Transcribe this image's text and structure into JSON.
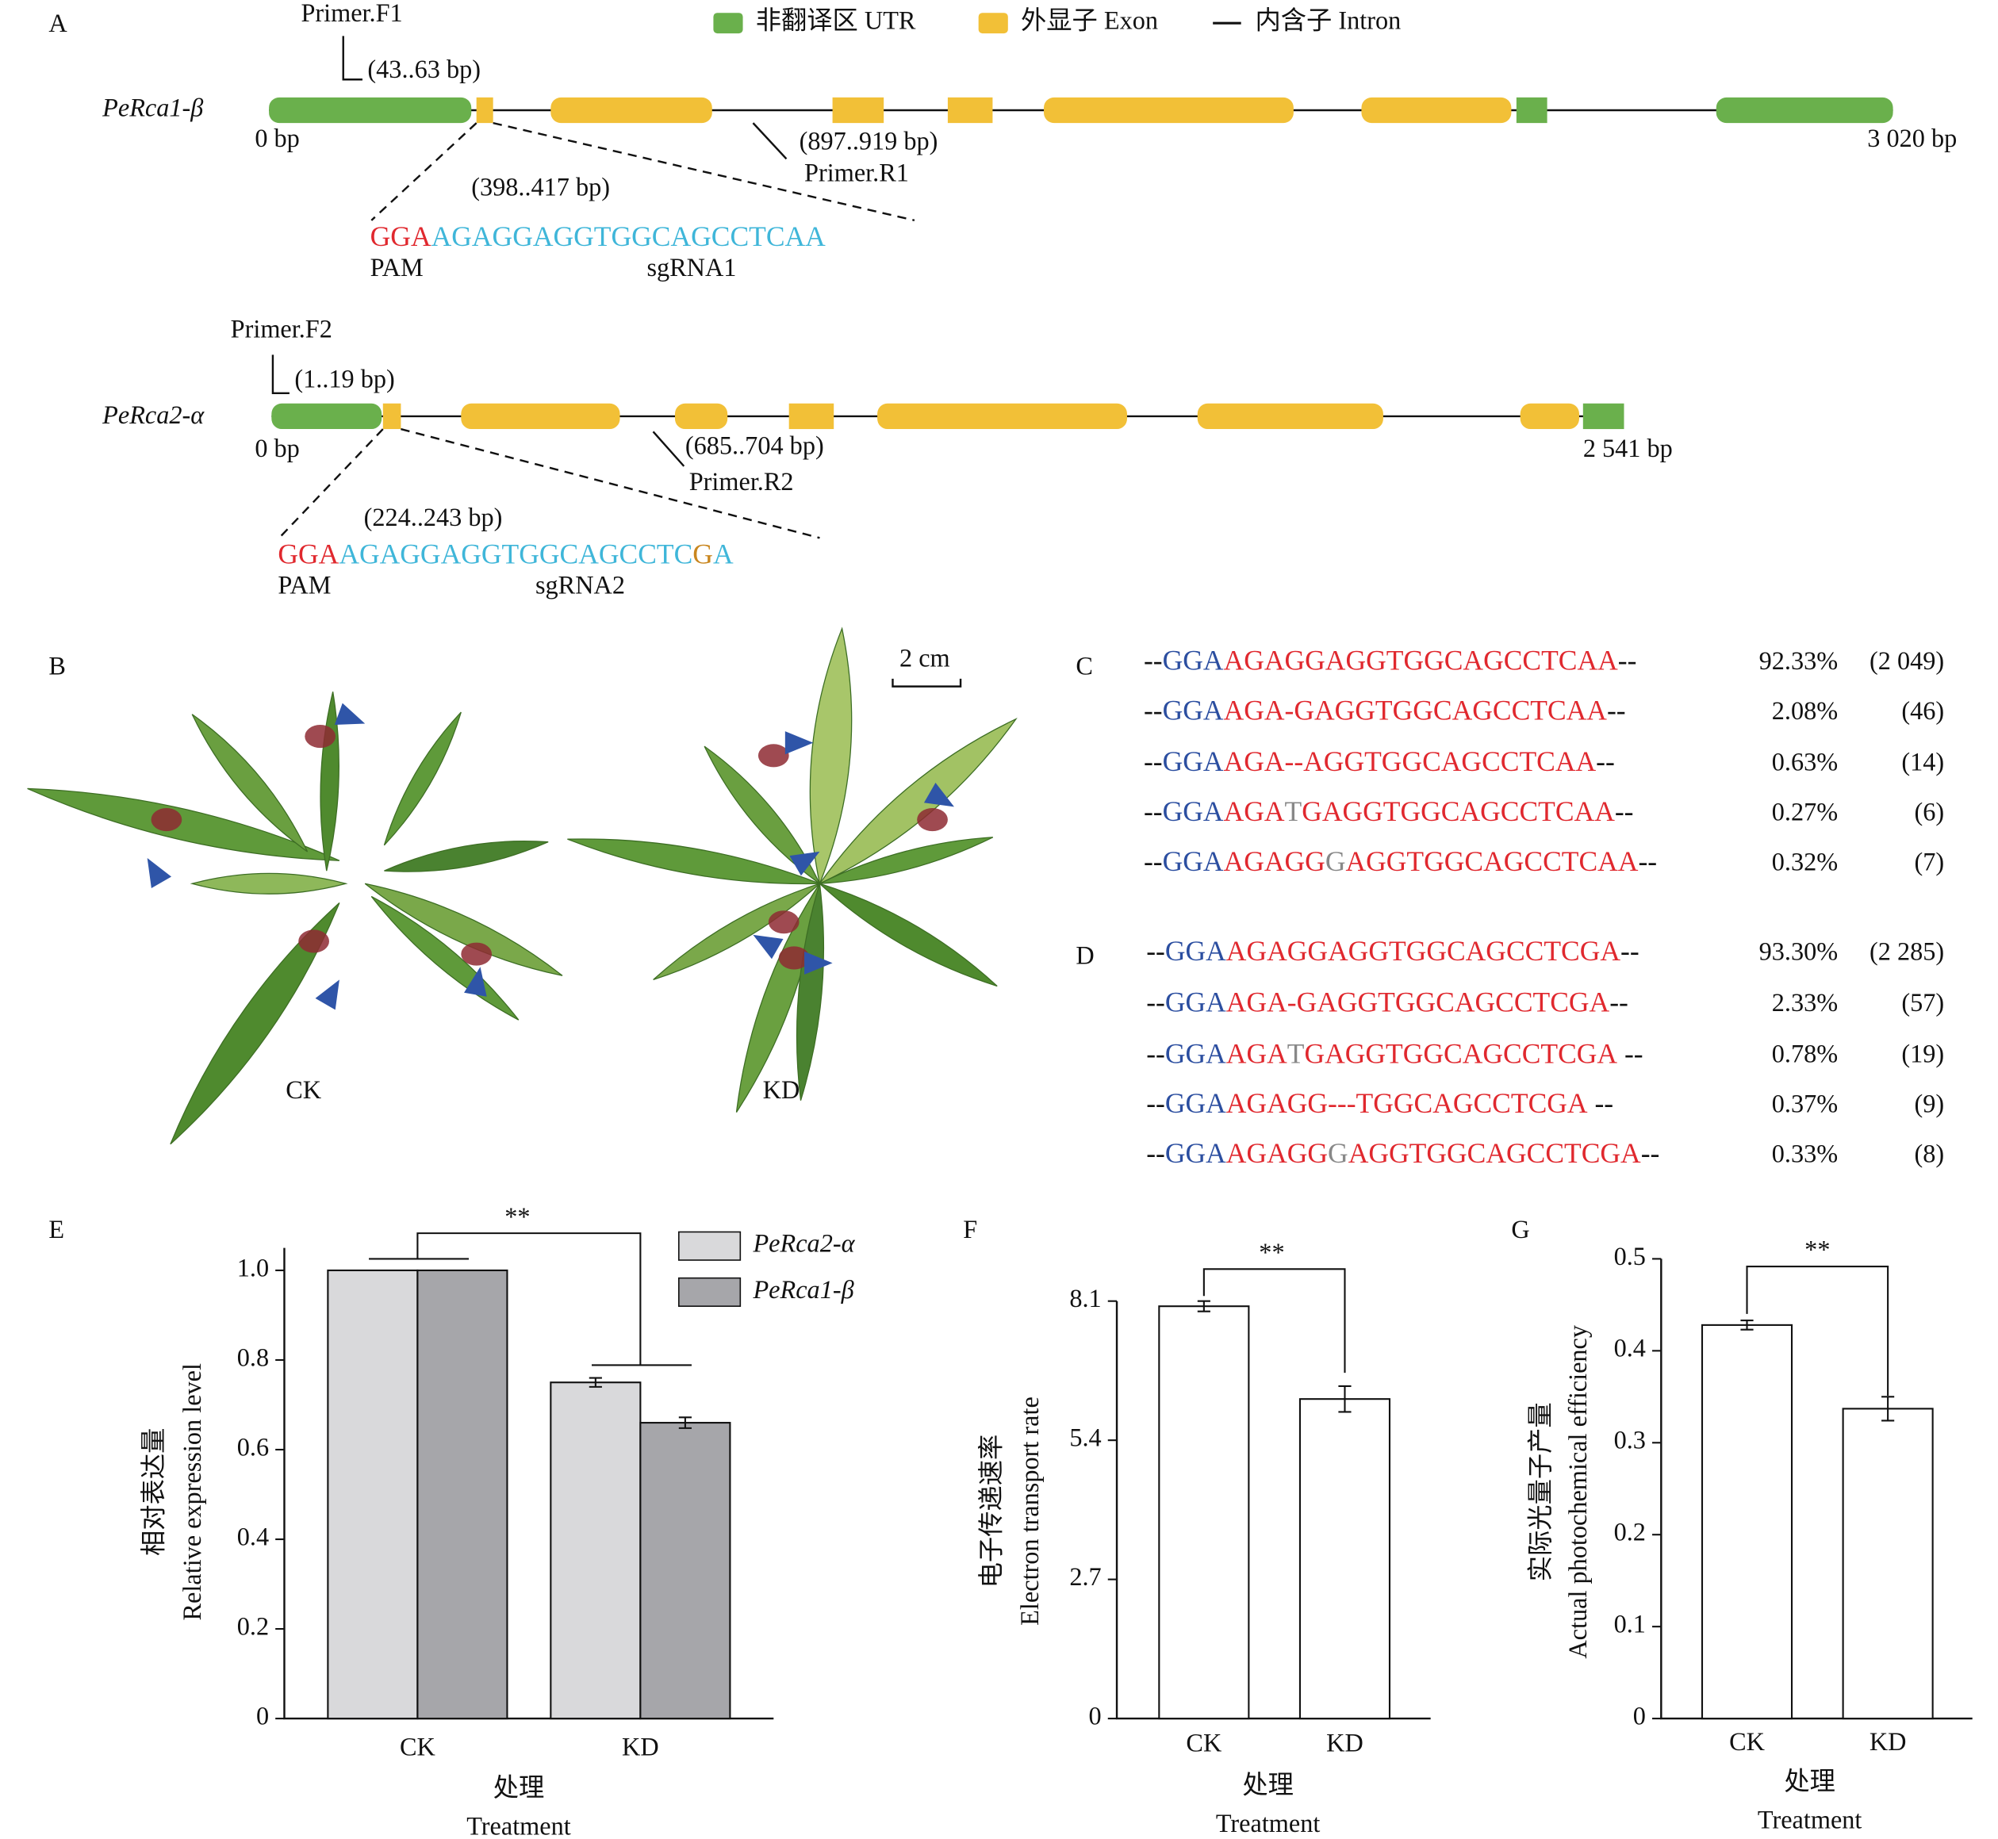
{
  "panel_a": {
    "label": "A",
    "legend": [
      {
        "text": "非翻译区 UTR",
        "color": "#6ab04c"
      },
      {
        "text": "外显子 Exon",
        "color": "#f2c037"
      },
      {
        "text": "内含子 Intron",
        "color": "#111111"
      }
    ],
    "genes": [
      {
        "name": "PeRca1-β",
        "start_label": "0 bp",
        "end_label": "3 020 bp",
        "primer_f": "Primer.F1",
        "primer_f_range": "(43..63 bp)",
        "primer_r_range": "(897..919 bp)",
        "primer_r": "Primer.R1",
        "site_range": "(398..417 bp)",
        "sequence": [
          {
            "text": "GGA",
            "color": "#e0282e"
          },
          {
            "text": "AGAGGAGGTGGCAGCCTCAA",
            "color": "#3fb6d9"
          }
        ],
        "pam_label": "PAM",
        "sgrna_label": "sgRNA1"
      },
      {
        "name": "PeRca2-α",
        "start_label": "0 bp",
        "end_label": "2 541 bp",
        "primer_f": "Primer.F2",
        "primer_f_range": "(1..19 bp)",
        "primer_r_range": "(685..704 bp)",
        "primer_r": "Primer.R2",
        "site_range": "(224..243 bp)",
        "sequence": [
          {
            "text": "GGA",
            "color": "#e0282e"
          },
          {
            "text": "AGAGGAGGTGGCAGCCTC",
            "color": "#3fb6d9"
          },
          {
            "text": "G",
            "color": "#c9861e"
          },
          {
            "text": "A",
            "color": "#3fb6d9"
          }
        ],
        "pam_label": "PAM",
        "sgrna_label": "sgRNA2"
      }
    ]
  },
  "panel_b": {
    "label": "B",
    "scale_bar": "2 cm",
    "left_label": "CK",
    "right_label": "KD"
  },
  "panel_c": {
    "label": "C",
    "rows": [
      {
        "segments": [
          {
            "text": "--",
            "color": "#111111"
          },
          {
            "text": "GGA",
            "color": "#2b4ea0"
          },
          {
            "text": "AGAGGAGGTGGCAGCCTCAA",
            "color": "#e0282e"
          },
          {
            "text": "--",
            "color": "#111111"
          }
        ],
        "percent": "92.33%",
        "count": "(2 049)"
      },
      {
        "segments": [
          {
            "text": "--",
            "color": "#111111"
          },
          {
            "text": "GGA",
            "color": "#2b4ea0"
          },
          {
            "text": "AGA-GAGGTGGCAGCCTCAA",
            "color": "#e0282e"
          },
          {
            "text": "--",
            "color": "#111111"
          }
        ],
        "percent": "2.08%",
        "count": "(46)"
      },
      {
        "segments": [
          {
            "text": "--",
            "color": "#111111"
          },
          {
            "text": "GGA",
            "color": "#2b4ea0"
          },
          {
            "text": "AGA--AGGTGGCAGCCTCAA",
            "color": "#e0282e"
          },
          {
            "text": "--",
            "color": "#111111"
          }
        ],
        "percent": "0.63%",
        "count": "(14)"
      },
      {
        "segments": [
          {
            "text": "--",
            "color": "#111111"
          },
          {
            "text": "GGA",
            "color": "#2b4ea0"
          },
          {
            "text": "AGA",
            "color": "#e0282e"
          },
          {
            "text": "T",
            "color": "#888888"
          },
          {
            "text": "GAGGTGGCAGCCTCAA",
            "color": "#e0282e"
          },
          {
            "text": "--",
            "color": "#111111"
          }
        ],
        "percent": "0.27%",
        "count": "(6)"
      },
      {
        "segments": [
          {
            "text": "--",
            "color": "#111111"
          },
          {
            "text": "GGA",
            "color": "#2b4ea0"
          },
          {
            "text": "AGAGG",
            "color": "#e0282e"
          },
          {
            "text": "G",
            "color": "#888888"
          },
          {
            "text": "AGGTGGCAGCCTCAA",
            "color": "#e0282e"
          },
          {
            "text": "--",
            "color": "#111111"
          }
        ],
        "percent": "0.32%",
        "count": "(7)"
      }
    ]
  },
  "panel_d": {
    "label": "D",
    "rows": [
      {
        "segments": [
          {
            "text": "--",
            "color": "#111111"
          },
          {
            "text": "GGA",
            "color": "#2b4ea0"
          },
          {
            "text": "AGAGGAGGTGGCAGCCTCGA",
            "color": "#e0282e"
          },
          {
            "text": "--",
            "color": "#111111"
          }
        ],
        "percent": "93.30%",
        "count": "(2 285)"
      },
      {
        "segments": [
          {
            "text": "--",
            "color": "#111111"
          },
          {
            "text": "GGA",
            "color": "#2b4ea0"
          },
          {
            "text": "AGA-GAGGTGGCAGCCTCGA",
            "color": "#e0282e"
          },
          {
            "text": "--",
            "color": "#111111"
          }
        ],
        "percent": "2.33%",
        "count": "(57)"
      },
      {
        "segments": [
          {
            "text": "--",
            "color": "#111111"
          },
          {
            "text": "GGA",
            "color": "#2b4ea0"
          },
          {
            "text": "AGA",
            "color": "#e0282e"
          },
          {
            "text": "T",
            "color": "#888888"
          },
          {
            "text": "GAGGTGGCAGCCTCGA",
            "color": "#e0282e"
          },
          {
            "text": " --",
            "color": "#111111"
          }
        ],
        "percent": "0.78%",
        "count": "(19)"
      },
      {
        "segments": [
          {
            "text": "--",
            "color": "#111111"
          },
          {
            "text": "GGA",
            "color": "#2b4ea0"
          },
          {
            "text": "AGAGG---TGGCAGCCTCGA",
            "color": "#e0282e"
          },
          {
            "text": " --",
            "color": "#111111"
          }
        ],
        "percent": "0.37%",
        "count": "(9)"
      },
      {
        "segments": [
          {
            "text": "--",
            "color": "#111111"
          },
          {
            "text": "GGA",
            "color": "#2b4ea0"
          },
          {
            "text": "AGAGG",
            "color": "#e0282e"
          },
          {
            "text": "G",
            "color": "#888888"
          },
          {
            "text": "AGGTGGCAGCCTCGA",
            "color": "#e0282e"
          },
          {
            "text": "--",
            "color": "#111111"
          }
        ],
        "percent": "0.33%",
        "count": "(8)"
      }
    ]
  },
  "chart_data": [
    {
      "type": "bar",
      "panel_label": "E",
      "categories": [
        "CK",
        "KD"
      ],
      "series": [
        {
          "name": "PeRca2-α",
          "color": "#d9d9db",
          "values": [
            1.0,
            0.75
          ],
          "errors": [
            0,
            0.01
          ]
        },
        {
          "name": "PeRca1-β",
          "color": "#a6a6aa",
          "values": [
            1.0,
            0.66
          ],
          "errors": [
            0,
            0.012
          ]
        }
      ],
      "ylim": [
        0,
        1.05
      ],
      "yticks": [
        0,
        0.2,
        0.4,
        0.6,
        0.8,
        {
          "value": 1,
          "label": "1.0"
        }
      ],
      "ylabel": [
        "相对表达量",
        "Relative expression level"
      ],
      "xlabel": [
        "处理",
        "Treatment"
      ],
      "annotation": "**",
      "legend": "top-right"
    },
    {
      "type": "bar",
      "panel_label": "F",
      "categories": [
        "CK",
        "KD"
      ],
      "values": [
        8.0,
        6.2
      ],
      "errors": [
        0.1,
        0.25
      ],
      "color": "#ffffff",
      "ylim": [
        0,
        8.1
      ],
      "yticks": [
        0,
        2.7,
        5.4,
        8.1
      ],
      "ylabel": [
        "电子传递速率",
        "Electron transport rate"
      ],
      "xlabel": [
        "处理",
        "Treatment"
      ],
      "annotation": "**"
    },
    {
      "type": "bar",
      "panel_label": "G",
      "categories": [
        "CK",
        "KD"
      ],
      "values": [
        0.428,
        0.337
      ],
      "errors": [
        0.005,
        0.013
      ],
      "color": "#ffffff",
      "ylim": [
        0,
        0.5
      ],
      "yticks": [
        0,
        0.1,
        0.2,
        0.3,
        0.4,
        0.5
      ],
      "ylabel": [
        "实际光量子产量",
        "Actual photochemical efficiency"
      ],
      "xlabel": [
        "处理",
        "Treatment"
      ],
      "annotation": "**"
    }
  ]
}
